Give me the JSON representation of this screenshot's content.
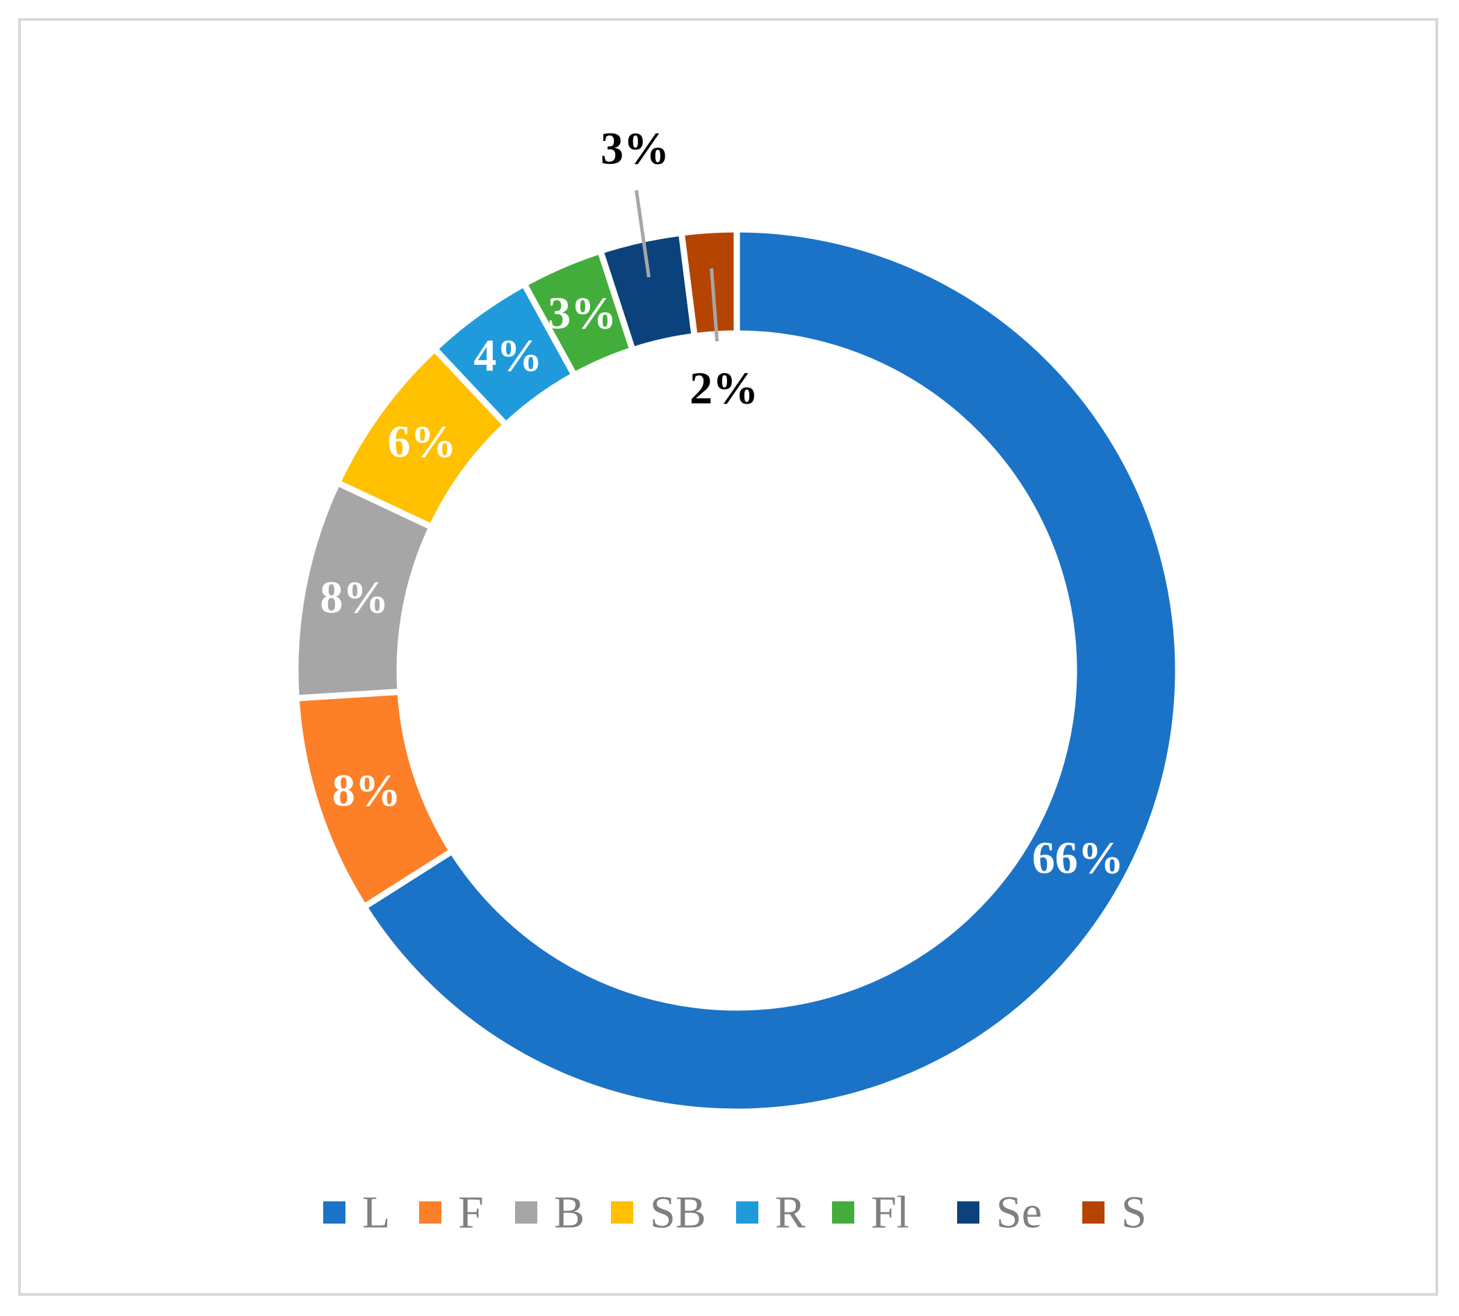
{
  "chart_data": {
    "type": "pie",
    "variant": "donut",
    "legend_position": "bottom",
    "slices": [
      {
        "label": "L",
        "value": 66,
        "display": "66%",
        "color": "#1a73c7",
        "label_color": "#ffffff",
        "label_placement": "inside"
      },
      {
        "label": "F",
        "value": 8,
        "display": "8%",
        "color": "#fd7f27",
        "label_color": "#ffffff",
        "label_placement": "inside"
      },
      {
        "label": "B",
        "value": 8,
        "display": "8%",
        "color": "#a6a6a6",
        "label_color": "#ffffff",
        "label_placement": "inside"
      },
      {
        "label": "SB",
        "value": 6,
        "display": "6%",
        "color": "#ffc000",
        "label_color": "#ffffff",
        "label_placement": "inside"
      },
      {
        "label": "R",
        "value": 4,
        "display": "4%",
        "color": "#1f9bdc",
        "label_color": "#ffffff",
        "label_placement": "inside"
      },
      {
        "label": "Fl",
        "value": 3,
        "display": "3%",
        "color": "#43ad3c",
        "label_color": "#ffffff",
        "label_placement": "inside"
      },
      {
        "label": "Se",
        "value": 3,
        "display": "3%",
        "color": "#0b427c",
        "label_color": "#000000",
        "label_placement": "outside-top"
      },
      {
        "label": "S",
        "value": 2,
        "display": "2%",
        "color": "#b44400",
        "label_color": "#000000",
        "label_placement": "outside-bottom"
      }
    ]
  }
}
